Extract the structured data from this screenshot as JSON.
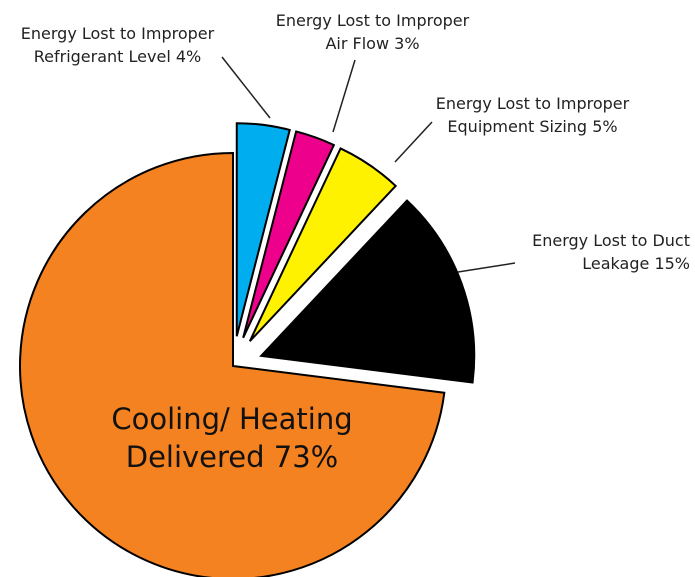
{
  "chart_data": {
    "type": "pie",
    "categories": [
      "Energy Lost to Improper Refrigerant Level",
      "Energy Lost to Improper Air Flow",
      "Energy Lost to Improper Equipment Sizing",
      "Energy Lost to Duct Leakage",
      "Cooling/ Heating Delivered"
    ],
    "values": [
      4,
      3,
      5,
      15,
      73
    ],
    "value_labels": [
      "4%",
      "3%",
      "5%",
      "15%",
      "73%"
    ],
    "colors": [
      "#00aeef",
      "#ec008c",
      "#fff200",
      "#000000",
      "#f58220"
    ]
  }
}
